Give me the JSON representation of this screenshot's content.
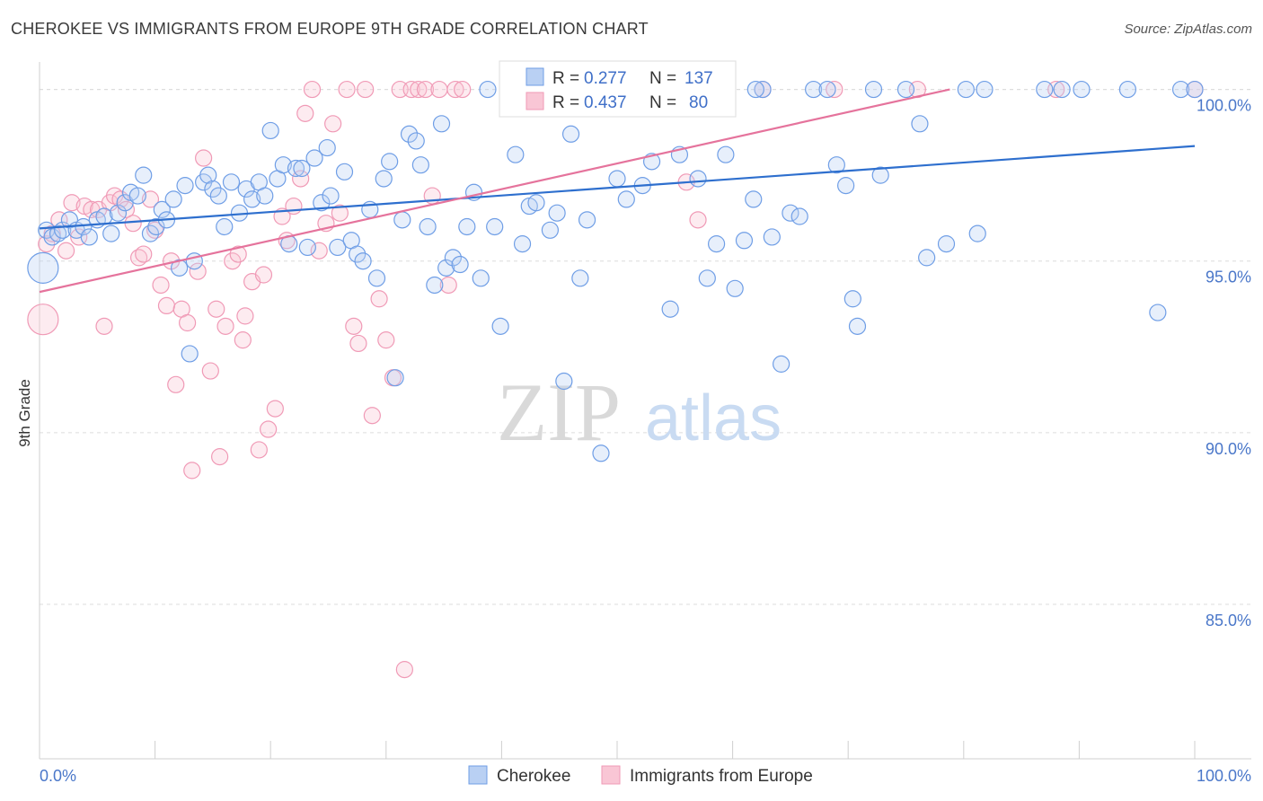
{
  "title": "CHEROKEE VS IMMIGRANTS FROM EUROPE 9TH GRADE CORRELATION CHART",
  "source": "Source: ZipAtlas.com",
  "colors": {
    "series1": "#6f9ee6",
    "series1_line": "#2e6fce",
    "series2": "#f09ab6",
    "series2_line": "#e5739c",
    "axis_text": "#4a77c9",
    "grid": "#dcdcdc"
  },
  "chart_data": {
    "type": "scatter",
    "title": "CHEROKEE VS IMMIGRANTS FROM EUROPE 9TH GRADE CORRELATION CHART",
    "xlabel": "",
    "ylabel": "9th Grade",
    "xlim": [
      0,
      100
    ],
    "ylim": [
      80.5,
      100.8
    ],
    "x_tick_labels": [
      "0.0%",
      "100.0%"
    ],
    "y_ticks": [
      85,
      90,
      95,
      100
    ],
    "y_tick_labels": [
      "85.0%",
      "90.0%",
      "95.0%",
      "100.0%"
    ],
    "grid": true,
    "legend_position": "top-center",
    "legend": {
      "r_label": "R =",
      "n_label": "N =",
      "entries": [
        {
          "r": "0.277",
          "n": "137"
        },
        {
          "r": "0.437",
          "n": "80"
        }
      ]
    },
    "watermark": "ZIPatlas",
    "series": [
      {
        "name": "Cherokee",
        "trend": [
          [
            0,
            95.95
          ],
          [
            100,
            98.35
          ]
        ],
        "points": [
          [
            0.3,
            94.8
          ],
          [
            0.6,
            95.9
          ],
          [
            1.1,
            95.7
          ],
          [
            1.6,
            95.8
          ],
          [
            2.0,
            95.9
          ],
          [
            2.6,
            96.2
          ],
          [
            3.2,
            95.9
          ],
          [
            3.8,
            96.0
          ],
          [
            4.3,
            95.7
          ],
          [
            5.0,
            96.2
          ],
          [
            5.6,
            96.3
          ],
          [
            6.2,
            95.8
          ],
          [
            6.8,
            96.4
          ],
          [
            7.4,
            96.7
          ],
          [
            7.9,
            97.0
          ],
          [
            8.5,
            96.9
          ],
          [
            9.0,
            97.5
          ],
          [
            9.6,
            95.8
          ],
          [
            10.1,
            96.0
          ],
          [
            10.6,
            96.5
          ],
          [
            11.0,
            96.2
          ],
          [
            11.6,
            96.8
          ],
          [
            12.1,
            94.8
          ],
          [
            12.6,
            97.2
          ],
          [
            13.0,
            92.3
          ],
          [
            13.4,
            95.0
          ],
          [
            14.2,
            97.3
          ],
          [
            14.6,
            97.5
          ],
          [
            15.0,
            97.1
          ],
          [
            15.5,
            96.9
          ],
          [
            16.0,
            96.0
          ],
          [
            16.6,
            97.3
          ],
          [
            17.3,
            96.4
          ],
          [
            17.9,
            97.1
          ],
          [
            18.4,
            96.8
          ],
          [
            19.0,
            97.3
          ],
          [
            19.5,
            96.9
          ],
          [
            20.0,
            98.8
          ],
          [
            20.6,
            97.4
          ],
          [
            21.1,
            97.8
          ],
          [
            21.6,
            95.5
          ],
          [
            22.2,
            97.7
          ],
          [
            22.7,
            97.7
          ],
          [
            23.2,
            95.4
          ],
          [
            23.8,
            98.0
          ],
          [
            24.4,
            96.7
          ],
          [
            24.9,
            98.3
          ],
          [
            25.2,
            96.9
          ],
          [
            25.8,
            95.4
          ],
          [
            26.4,
            97.6
          ],
          [
            27.0,
            95.6
          ],
          [
            27.5,
            95.2
          ],
          [
            28.0,
            95.0
          ],
          [
            28.6,
            96.5
          ],
          [
            29.2,
            94.5
          ],
          [
            29.8,
            97.4
          ],
          [
            30.3,
            97.9
          ],
          [
            30.8,
            91.6
          ],
          [
            31.4,
            96.2
          ],
          [
            32.0,
            98.7
          ],
          [
            32.6,
            98.5
          ],
          [
            33.0,
            97.8
          ],
          [
            33.6,
            96.0
          ],
          [
            34.2,
            94.3
          ],
          [
            34.8,
            99.0
          ],
          [
            35.2,
            94.8
          ],
          [
            35.8,
            95.1
          ],
          [
            36.4,
            94.9
          ],
          [
            37.0,
            96.0
          ],
          [
            37.6,
            97.0
          ],
          [
            38.2,
            94.5
          ],
          [
            38.8,
            100.0
          ],
          [
            39.4,
            96.0
          ],
          [
            39.9,
            93.1
          ],
          [
            40.6,
            100.0
          ],
          [
            41.2,
            98.1
          ],
          [
            41.8,
            95.5
          ],
          [
            42.4,
            96.6
          ],
          [
            43.0,
            96.7
          ],
          [
            43.6,
            100.0
          ],
          [
            44.2,
            95.9
          ],
          [
            44.8,
            96.4
          ],
          [
            45.4,
            91.5
          ],
          [
            46.0,
            98.7
          ],
          [
            46.8,
            94.5
          ],
          [
            47.4,
            96.2
          ],
          [
            48.0,
            100.0
          ],
          [
            48.6,
            89.4
          ],
          [
            49.2,
            100.0
          ],
          [
            50.0,
            97.4
          ],
          [
            50.8,
            96.8
          ],
          [
            51.4,
            100.0
          ],
          [
            52.2,
            97.2
          ],
          [
            53.0,
            97.9
          ],
          [
            53.8,
            100.0
          ],
          [
            54.6,
            93.6
          ],
          [
            55.4,
            98.1
          ],
          [
            56.2,
            100.0
          ],
          [
            57.0,
            97.4
          ],
          [
            57.8,
            94.5
          ],
          [
            58.6,
            95.5
          ],
          [
            59.4,
            98.1
          ],
          [
            60.2,
            94.2
          ],
          [
            61.0,
            95.6
          ],
          [
            61.8,
            96.8
          ],
          [
            62.6,
            100.0
          ],
          [
            63.4,
            95.7
          ],
          [
            64.2,
            92.0
          ],
          [
            65.0,
            96.4
          ],
          [
            65.8,
            96.3
          ],
          [
            67.0,
            100.0
          ],
          [
            68.2,
            100.0
          ],
          [
            69.0,
            97.8
          ],
          [
            69.8,
            97.2
          ],
          [
            70.4,
            93.9
          ],
          [
            70.8,
            93.1
          ],
          [
            72.2,
            100.0
          ],
          [
            72.8,
            97.5
          ],
          [
            75.0,
            100.0
          ],
          [
            76.2,
            99.0
          ],
          [
            76.8,
            95.1
          ],
          [
            78.5,
            95.5
          ],
          [
            80.2,
            100.0
          ],
          [
            81.2,
            95.8
          ],
          [
            81.8,
            100.0
          ],
          [
            87.0,
            100.0
          ],
          [
            88.5,
            100.0
          ],
          [
            90.2,
            100.0
          ],
          [
            94.2,
            100.0
          ],
          [
            96.8,
            93.5
          ],
          [
            98.8,
            100.0
          ],
          [
            100.0,
            100.0
          ],
          [
            62.0,
            100.0
          ],
          [
            58.0,
            100.0
          ]
        ]
      },
      {
        "name": "Immigrants from Europe",
        "trend": [
          [
            0,
            94.1
          ],
          [
            78.8,
            100.0
          ]
        ],
        "points": [
          [
            0.3,
            93.3
          ],
          [
            0.6,
            95.5
          ],
          [
            1.1,
            95.8
          ],
          [
            1.7,
            96.2
          ],
          [
            2.3,
            95.3
          ],
          [
            2.8,
            96.7
          ],
          [
            3.4,
            95.7
          ],
          [
            3.9,
            96.6
          ],
          [
            4.5,
            96.5
          ],
          [
            5.1,
            96.5
          ],
          [
            5.6,
            93.1
          ],
          [
            6.1,
            96.7
          ],
          [
            6.5,
            96.9
          ],
          [
            7.0,
            96.8
          ],
          [
            7.5,
            96.5
          ],
          [
            8.1,
            96.1
          ],
          [
            8.6,
            95.1
          ],
          [
            9.0,
            95.2
          ],
          [
            9.6,
            96.8
          ],
          [
            10.0,
            95.9
          ],
          [
            10.5,
            94.3
          ],
          [
            11.0,
            93.7
          ],
          [
            11.4,
            95.0
          ],
          [
            11.8,
            91.4
          ],
          [
            12.3,
            93.6
          ],
          [
            12.8,
            93.2
          ],
          [
            13.2,
            88.9
          ],
          [
            13.7,
            94.7
          ],
          [
            14.2,
            98.0
          ],
          [
            14.8,
            91.8
          ],
          [
            15.3,
            93.6
          ],
          [
            15.6,
            89.3
          ],
          [
            16.1,
            93.1
          ],
          [
            16.7,
            95.0
          ],
          [
            17.2,
            95.2
          ],
          [
            17.6,
            92.7
          ],
          [
            17.8,
            93.4
          ],
          [
            18.4,
            94.4
          ],
          [
            19.0,
            89.5
          ],
          [
            19.4,
            94.6
          ],
          [
            19.8,
            90.1
          ],
          [
            20.4,
            90.7
          ],
          [
            21.0,
            96.3
          ],
          [
            21.4,
            95.6
          ],
          [
            22.0,
            96.6
          ],
          [
            22.6,
            97.4
          ],
          [
            23.0,
            99.3
          ],
          [
            23.6,
            100.0
          ],
          [
            24.2,
            95.3
          ],
          [
            24.8,
            96.1
          ],
          [
            25.4,
            99.0
          ],
          [
            26.0,
            96.4
          ],
          [
            26.6,
            100.0
          ],
          [
            27.2,
            93.1
          ],
          [
            27.6,
            92.6
          ],
          [
            28.2,
            100.0
          ],
          [
            28.8,
            90.5
          ],
          [
            29.4,
            93.9
          ],
          [
            30.0,
            92.7
          ],
          [
            30.6,
            91.6
          ],
          [
            31.2,
            100.0
          ],
          [
            31.6,
            83.1
          ],
          [
            32.2,
            100.0
          ],
          [
            32.8,
            100.0
          ],
          [
            33.4,
            100.0
          ],
          [
            34.0,
            96.9
          ],
          [
            34.6,
            100.0
          ],
          [
            35.4,
            94.3
          ],
          [
            36.0,
            100.0
          ],
          [
            36.6,
            100.0
          ],
          [
            44.0,
            99.8
          ],
          [
            52.0,
            100.0
          ],
          [
            56.0,
            97.3
          ],
          [
            57.0,
            96.2
          ],
          [
            59.0,
            100.0
          ],
          [
            62.6,
            100.0
          ],
          [
            68.8,
            100.0
          ],
          [
            76.0,
            100.0
          ],
          [
            88.0,
            100.0
          ],
          [
            100.0,
            100.0
          ]
        ]
      }
    ]
  }
}
